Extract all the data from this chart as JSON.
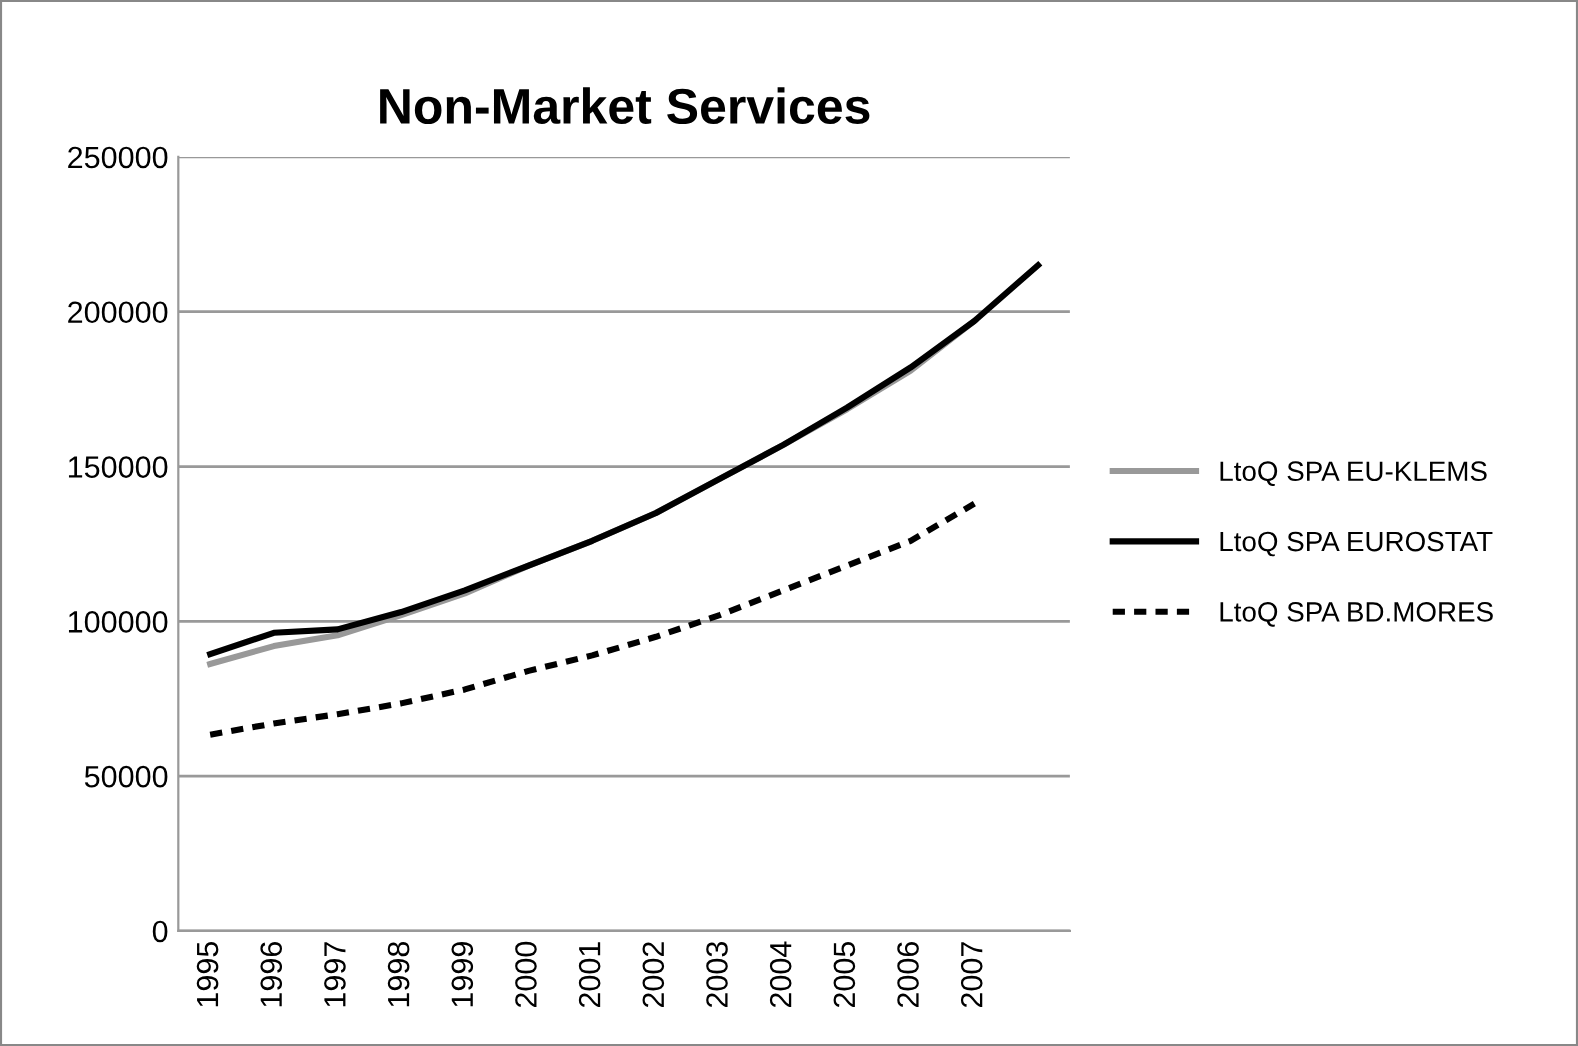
{
  "chart_data": {
    "type": "line",
    "title": "Non-Market Services",
    "categories": [
      "1995",
      "1996",
      "1997",
      "1998",
      "1999",
      "2000",
      "2001",
      "2002",
      "2003",
      "2004",
      "2005",
      "2006",
      "2007",
      null
    ],
    "series": [
      {
        "name": "LtoQ SPA EU-KLEMS",
        "color": "#999999",
        "line_style": "solid",
        "values": [
          86200,
          92000,
          95500,
          102000,
          109000,
          118000,
          126000,
          135000,
          146000,
          157000,
          168500,
          181000,
          197000,
          null
        ]
      },
      {
        "name": "LtoQ SPA EUROSTAT",
        "color": "#000000",
        "line_style": "solid",
        "values": [
          89400,
          96300,
          97400,
          103000,
          110000,
          118000,
          126000,
          135000,
          146000,
          157000,
          169000,
          182000,
          197000,
          215000
        ]
      },
      {
        "name": "LtoQ SPA BD.MORES",
        "color": "#000000",
        "line_style": "dashed",
        "values": [
          63400,
          67000,
          70000,
          73500,
          78000,
          84000,
          89000,
          95000,
          102000,
          110000,
          118000,
          126000,
          138000,
          null
        ]
      }
    ],
    "ylim": [
      0,
      250000
    ],
    "yticks": [
      0,
      50000,
      100000,
      150000,
      200000,
      250000
    ],
    "grid": "y",
    "legend": "right",
    "marker": "none"
  }
}
